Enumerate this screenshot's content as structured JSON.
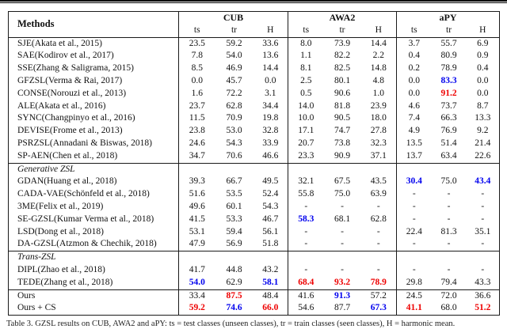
{
  "accent_colors": {
    "best": "#ee0000",
    "second_best": "#0000ee"
  },
  "table": {
    "methods_header": "Methods",
    "groups": [
      "CUB",
      "AWA2",
      "aPY"
    ],
    "sub_headers": [
      "ts",
      "tr",
      "H"
    ],
    "sections": [
      {
        "label": "",
        "rule_top": false,
        "rows": [
          {
            "method": "SJE(Akata et al., 2015)",
            "values": [
              "23.5",
              "59.2",
              "33.6",
              "8.0",
              "73.9",
              "14.4",
              "3.7",
              "55.7",
              "6.9"
            ],
            "marks": {}
          },
          {
            "method": "SAE(Kodirov et al., 2017)",
            "values": [
              "7.8",
              "54.0",
              "13.6",
              "1.1",
              "82.2",
              "2.2",
              "0.4",
              "80.9",
              "0.9"
            ],
            "marks": {}
          },
          {
            "method": "SSE(Zhang & Saligrama, 2015)",
            "values": [
              "8.5",
              "46.9",
              "14.4",
              "8.1",
              "82.5",
              "14.8",
              "0.2",
              "78.9",
              "0.4"
            ],
            "marks": {}
          },
          {
            "method": "GFZSL(Verma & Rai, 2017)",
            "values": [
              "0.0",
              "45.7",
              "0.0",
              "2.5",
              "80.1",
              "4.8",
              "0.0",
              "83.3",
              "0.0"
            ],
            "marks": {
              "7": "blue"
            }
          },
          {
            "method": "CONSE(Norouzi et al., 2013)",
            "values": [
              "1.6",
              "72.2",
              "3.1",
              "0.5",
              "90.6",
              "1.0",
              "0.0",
              "91.2",
              "0.0"
            ],
            "marks": {
              "7": "red"
            }
          },
          {
            "method": "ALE(Akata et al., 2016)",
            "values": [
              "23.7",
              "62.8",
              "34.4",
              "14.0",
              "81.8",
              "23.9",
              "4.6",
              "73.7",
              "8.7"
            ],
            "marks": {}
          },
          {
            "method": "SYNC(Changpinyo et al., 2016)",
            "values": [
              "11.5",
              "70.9",
              "19.8",
              "10.0",
              "90.5",
              "18.0",
              "7.4",
              "66.3",
              "13.3"
            ],
            "marks": {}
          },
          {
            "method": "DEVISE(Frome et al., 2013)",
            "values": [
              "23.8",
              "53.0",
              "32.8",
              "17.1",
              "74.7",
              "27.8",
              "4.9",
              "76.9",
              "9.2"
            ],
            "marks": {}
          },
          {
            "method": "PSRZSL(Annadani & Biswas, 2018)",
            "values": [
              "24.6",
              "54.3",
              "33.9",
              "20.7",
              "73.8",
              "32.3",
              "13.5",
              "51.4",
              "21.4"
            ],
            "marks": {}
          },
          {
            "method": "SP-AEN(Chen et al., 2018)",
            "values": [
              "34.7",
              "70.6",
              "46.6",
              "23.3",
              "90.9",
              "37.1",
              "13.7",
              "63.4",
              "22.6"
            ],
            "marks": {}
          }
        ]
      },
      {
        "label": "Generative ZSL",
        "rule_top": true,
        "rows": [
          {
            "method": "GDAN(Huang et al., 2018)",
            "values": [
              "39.3",
              "66.7",
              "49.5",
              "32.1",
              "67.5",
              "43.5",
              "30.4",
              "75.0",
              "43.4"
            ],
            "marks": {
              "6": "blue",
              "8": "blue"
            }
          },
          {
            "method": "CADA-VAE(Schönfeld et al., 2018)",
            "values": [
              "51.6",
              "53.5",
              "52.4",
              "55.8",
              "75.0",
              "63.9",
              "-",
              "-",
              "-"
            ],
            "marks": {}
          },
          {
            "method": "3ME(Felix et al., 2019)",
            "values": [
              "49.6",
              "60.1",
              "54.3",
              "-",
              "-",
              "-",
              "-",
              "-",
              "-"
            ],
            "marks": {}
          },
          {
            "method": "SE-GZSL(Kumar Verma et al., 2018)",
            "values": [
              "41.5",
              "53.3",
              "46.7",
              "58.3",
              "68.1",
              "62.8",
              "-",
              "-",
              "-"
            ],
            "marks": {
              "3": "blue"
            }
          },
          {
            "method": "LSD(Dong et al., 2018)",
            "values": [
              "53.1",
              "59.4",
              "56.1",
              "-",
              "-",
              "-",
              "22.4",
              "81.3",
              "35.1"
            ],
            "marks": {}
          },
          {
            "method": "DA-GZSL(Atzmon & Chechik, 2018)",
            "values": [
              "47.9",
              "56.9",
              "51.8",
              "-",
              "-",
              "-",
              "-",
              "-",
              "-"
            ],
            "marks": {}
          }
        ]
      },
      {
        "label": "Trans-ZSL",
        "rule_top": true,
        "rows": [
          {
            "method": "DIPL(Zhao et al., 2018)",
            "values": [
              "41.7",
              "44.8",
              "43.2",
              "-",
              "-",
              "-",
              "-",
              "-",
              "-"
            ],
            "marks": {}
          },
          {
            "method": "TEDE(Zhang et al., 2018)",
            "values": [
              "54.0",
              "62.9",
              "58.1",
              "68.4",
              "93.2",
              "78.9",
              "29.8",
              "79.4",
              "43.3"
            ],
            "marks": {
              "0": "blue",
              "2": "blue",
              "3": "red",
              "4": "red",
              "5": "red"
            }
          }
        ]
      },
      {
        "label": "",
        "rule_top": true,
        "rows": [
          {
            "method": "Ours",
            "values": [
              "33.4",
              "87.5",
              "48.4",
              "41.6",
              "91.3",
              "57.2",
              "24.5",
              "72.0",
              "36.6"
            ],
            "marks": {
              "1": "red",
              "4": "blue"
            }
          },
          {
            "method": "Ours + CS",
            "values": [
              "59.2",
              "74.6",
              "66.0",
              "54.6",
              "87.7",
              "67.3",
              "41.1",
              "68.0",
              "51.2"
            ],
            "marks": {
              "0": "red",
              "1": "blue",
              "2": "red",
              "5": "blue",
              "6": "red",
              "8": "red"
            }
          }
        ]
      }
    ]
  },
  "caption": "Table 3. GZSL results on CUB, AWA2 and aPY: ts = test classes (unseen classes), tr = train classes (seen classes), H = harmonic mean."
}
